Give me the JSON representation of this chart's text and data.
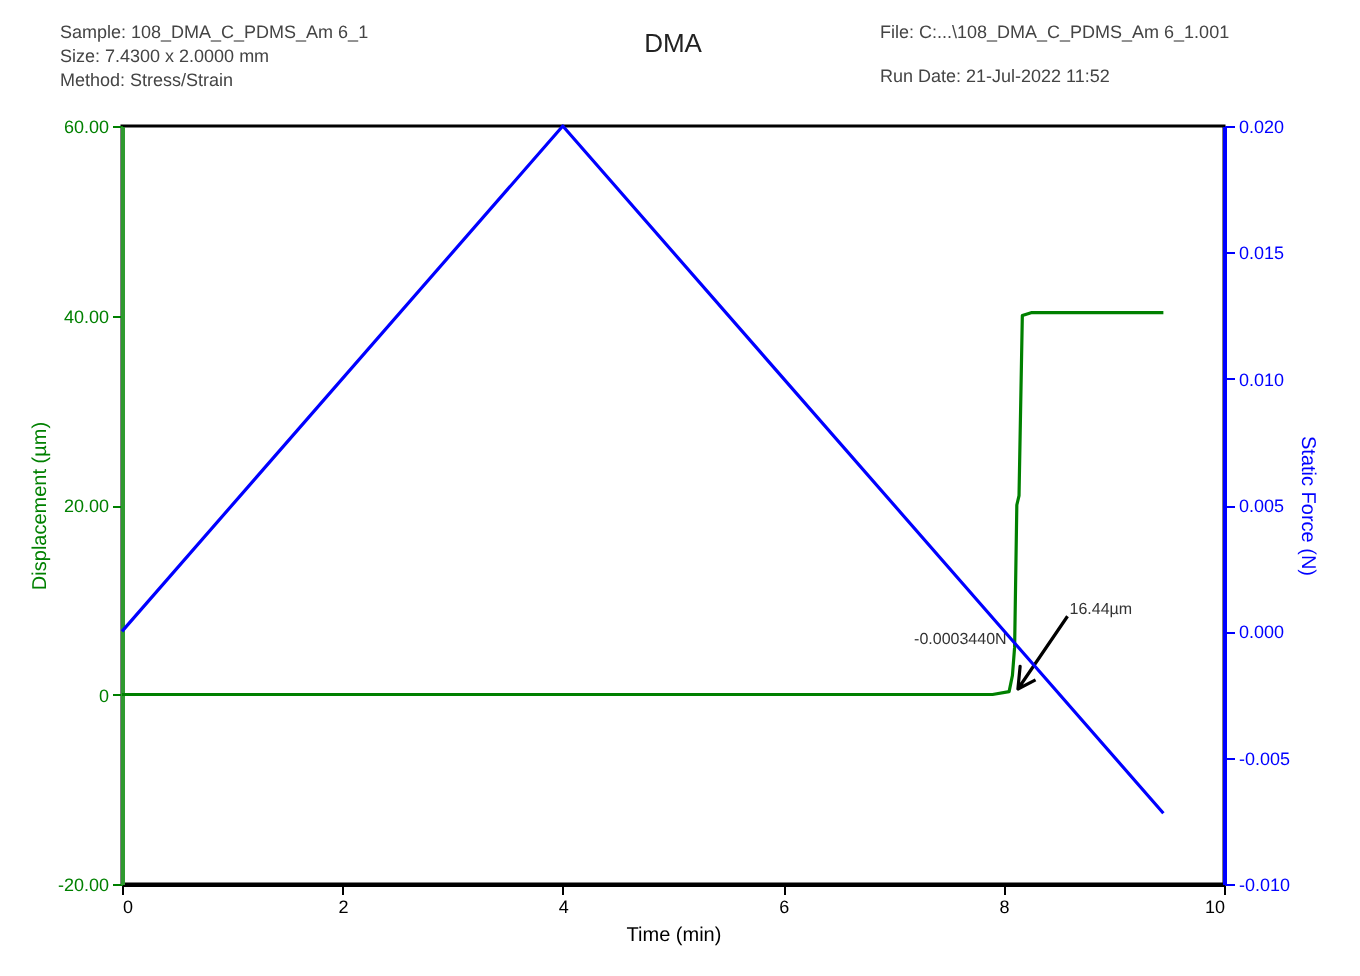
{
  "chart_data": {
    "type": "line",
    "title": "DMA",
    "annotations": [
      "Sample: 108_DMA_C_PDMS_Am 6_1",
      "Size: 7.4300 x 2.0000 mm",
      "Method: Stress/Strain",
      "File: C:...\\108_DMA_C_PDMS_Am 6_1.001",
      "Run Date: 21-Jul-2022 11:52",
      {
        "text": "-0.0003440N",
        "x": 8.1,
        "y": 5.7
      },
      "16.44µm"
    ],
    "xlabel": "Time (min)",
    "ylabel": "Displacement (µm)",
    "y2label": "Static Force (N)",
    "xlim": [
      0,
      10
    ],
    "xticks": [
      0,
      2,
      4,
      6,
      8,
      10
    ],
    "ylim": [
      -20,
      60
    ],
    "yticks": [
      {
        "value": -20,
        "label": "-20.00"
      },
      0,
      {
        "value": 20,
        "label": "20.00"
      },
      {
        "value": 40,
        "label": "40.00"
      },
      {
        "value": 60,
        "label": "60.00"
      }
    ],
    "y2lim": [
      -0.01,
      0.02
    ],
    "y2ticks": [
      {
        "value": -0.01,
        "label": "-0.010"
      },
      {
        "value": -0.005,
        "label": "-0.005"
      },
      {
        "value": 0,
        "label": "0.000"
      },
      {
        "value": 0.005,
        "label": "0.005"
      },
      {
        "value": 0.01,
        "label": "0.010"
      },
      {
        "value": 0.015,
        "label": "0.015"
      },
      {
        "value": 0.02,
        "label": "0.020"
      }
    ],
    "series": [
      {
        "color": "#008000",
        "x": [
          0,
          7.9,
          8.05,
          8.08,
          8.1,
          8.12,
          8.14,
          8.17,
          8.25,
          9.45
        ],
        "values": [
          0,
          0,
          0.3,
          2,
          5,
          20,
          21,
          40,
          40.3,
          40.3
        ]
      },
      {
        "color": "#0000ff",
        "axis": "y2",
        "x": [
          0,
          4,
          9.45
        ],
        "values": [
          0,
          0.02,
          -0.0072
        ]
      }
    ]
  }
}
